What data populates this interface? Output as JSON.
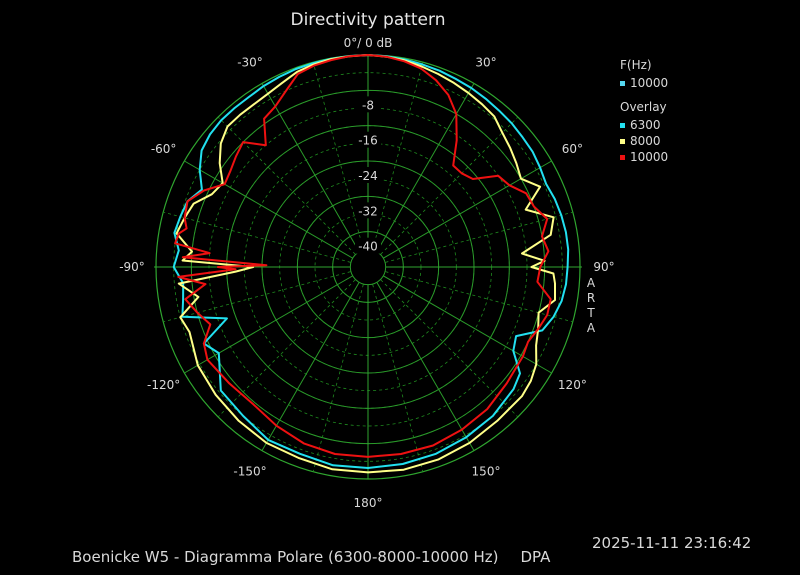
{
  "chart_data": {
    "type": "polar",
    "title": "Directivity pattern",
    "radial_axis": {
      "min": -48,
      "max": 0,
      "ticks": [
        -8,
        -16,
        -24,
        -32,
        -40
      ],
      "top_label": "0°/ 0 dB"
    },
    "angle_labels": [
      {
        "angle": 0,
        "label": ""
      },
      {
        "angle": 30,
        "label": "30°"
      },
      {
        "angle": 60,
        "label": "60°"
      },
      {
        "angle": 90,
        "label": "90°"
      },
      {
        "angle": 120,
        "label": "120°"
      },
      {
        "angle": 150,
        "label": "150°"
      },
      {
        "angle": 180,
        "label": "180°"
      },
      {
        "angle": -150,
        "label": "-150°"
      },
      {
        "angle": -120,
        "label": "-120°"
      },
      {
        "angle": -90,
        "label": "-90°"
      },
      {
        "angle": -60,
        "label": "-60°"
      },
      {
        "angle": -30,
        "label": "-30°"
      }
    ],
    "legend": {
      "main_header": "F(Hz)",
      "main": [
        {
          "name": "10000",
          "color": "#55d8f0"
        }
      ],
      "overlay_header": "Overlay",
      "overlay": [
        {
          "name": "6300",
          "color": "#22e0f0"
        },
        {
          "name": "8000",
          "color": "#ffff88"
        },
        {
          "name": "10000",
          "color": "#ee1111"
        }
      ]
    },
    "series": [
      {
        "name": "6300",
        "color": "#22e0f0",
        "angles": [
          -180,
          -170,
          -160,
          -150,
          -140,
          -130,
          -120,
          -115,
          -110,
          -105,
          -100,
          -95,
          -90,
          -85,
          -80,
          -75,
          -70,
          -65,
          -60,
          -55,
          -50,
          -45,
          -40,
          -35,
          -30,
          -25,
          -20,
          -15,
          -10,
          -5,
          0,
          5,
          10,
          15,
          20,
          25,
          30,
          35,
          40,
          45,
          50,
          55,
          60,
          65,
          70,
          75,
          80,
          85,
          90,
          95,
          100,
          105,
          110,
          115,
          120,
          125,
          130,
          140,
          150,
          160,
          170
        ],
        "values": [
          -2.5,
          -2.4,
          -3,
          -2.8,
          -4,
          -4.5,
          -9,
          -7,
          -14,
          -4.5,
          -5.5,
          -6,
          -4,
          -5,
          -3.5,
          -4,
          -4.5,
          -6.5,
          -4,
          -2,
          -1.3,
          -1,
          -1,
          -1,
          -0.7,
          -0.5,
          -0.3,
          -0.2,
          -0.1,
          -0.05,
          0,
          -0.1,
          -0.3,
          -0.5,
          -0.7,
          -1,
          -1.2,
          -1.5,
          -1.8,
          -2,
          -2.3,
          -2.5,
          -3,
          -3.5,
          -3,
          -2.7,
          -2.5,
          -2.5,
          -2.8,
          -3,
          -3.5,
          -4.5,
          -6,
          -11,
          -10,
          -6,
          -5,
          -4,
          -3.5,
          -3,
          -2.7
        ]
      },
      {
        "name": "8000",
        "color": "#ffff88",
        "angles": [
          -180,
          -170,
          -160,
          -150,
          -140,
          -130,
          -120,
          -110,
          -105,
          -100,
          -95,
          -92,
          -90,
          -88,
          -85,
          -80,
          -75,
          -70,
          -65,
          -60,
          -55,
          -50,
          -45,
          -40,
          -35,
          -30,
          -25,
          -20,
          -15,
          -10,
          -5,
          0,
          5,
          10,
          15,
          20,
          25,
          30,
          35,
          40,
          45,
          50,
          55,
          60,
          65,
          70,
          75,
          80,
          85,
          88,
          90,
          92,
          95,
          100,
          105,
          110,
          115,
          120,
          125,
          130,
          140,
          150,
          160,
          170
        ],
        "values": [
          -1.5,
          -1.5,
          -2,
          -2,
          -2.5,
          -3,
          -3.5,
          -5,
          -4,
          -9,
          -5,
          -18,
          -22,
          -6,
          -8,
          -4,
          -5,
          -6,
          -9,
          -10,
          -7,
          -4.5,
          -3,
          -3,
          -3,
          -2.7,
          -2,
          -1,
          -0.5,
          -0.2,
          -0.1,
          0,
          -0.2,
          -0.5,
          -1,
          -1.5,
          -2,
          -2.5,
          -3,
          -3.5,
          -5,
          -6,
          -7,
          -8,
          -5,
          -10,
          -4.5,
          -6,
          -13,
          -8,
          -11,
          -6,
          -5.5,
          -5,
          -8,
          -7,
          -6,
          -4,
          -3,
          -2.5,
          -2.5,
          -2,
          -1.6,
          -1.4
        ]
      },
      {
        "name": "10000",
        "color": "#ee1111",
        "angles": [
          -180,
          -170,
          -160,
          -150,
          -140,
          -130,
          -120,
          -115,
          -110,
          -105,
          -100,
          -96,
          -93,
          -91,
          -90,
          -89,
          -87,
          -85,
          -83,
          -80,
          -78,
          -75,
          -70,
          -65,
          -60,
          -55,
          -50,
          -45,
          -40,
          -35,
          -30,
          -25,
          -20,
          -15,
          -10,
          -5,
          0,
          5,
          10,
          15,
          20,
          25,
          30,
          35,
          40,
          45,
          50,
          55,
          60,
          65,
          70,
          75,
          80,
          85,
          90,
          95,
          100,
          105,
          110,
          115,
          120,
          130,
          140,
          150,
          160,
          170
        ],
        "values": [
          -5,
          -5,
          -5.5,
          -6.5,
          -7.5,
          -7,
          -6,
          -7,
          -10,
          -8,
          -6,
          -11,
          -5,
          -18,
          -14,
          -25,
          -6,
          -12,
          -4,
          -4.5,
          -6,
          -5,
          -4.5,
          -7,
          -10.5,
          -10,
          -9,
          -8,
          -12,
          -7,
          -6,
          -4,
          -1.5,
          -0.8,
          -0.4,
          -0.1,
          0,
          -0.2,
          -0.7,
          -1.5,
          -3,
          -5,
          -8,
          -13,
          -18,
          -18,
          -17,
          -12,
          -11,
          -8.5,
          -8,
          -6,
          -8,
          -7,
          -9,
          -9.5,
          -6,
          -6,
          -7,
          -8,
          -7.5,
          -7,
          -6,
          -5.5,
          -5,
          -5
        ]
      }
    ]
  },
  "texts": {
    "title": "Directivity pattern",
    "legend_main_header": "F(Hz)",
    "legend_main_item": "10000",
    "legend_overlay_header": "Overlay",
    "legend_overlay_1": "6300",
    "legend_overlay_2": "8000",
    "legend_overlay_3": "10000",
    "side_label": "ARTA",
    "footer_caption": "Boenicke W5 - Diagramma Polare (6300-8000-10000 Hz)",
    "footer_brand": "DPA",
    "timestamp": "2025-11-11  23:16:42"
  }
}
